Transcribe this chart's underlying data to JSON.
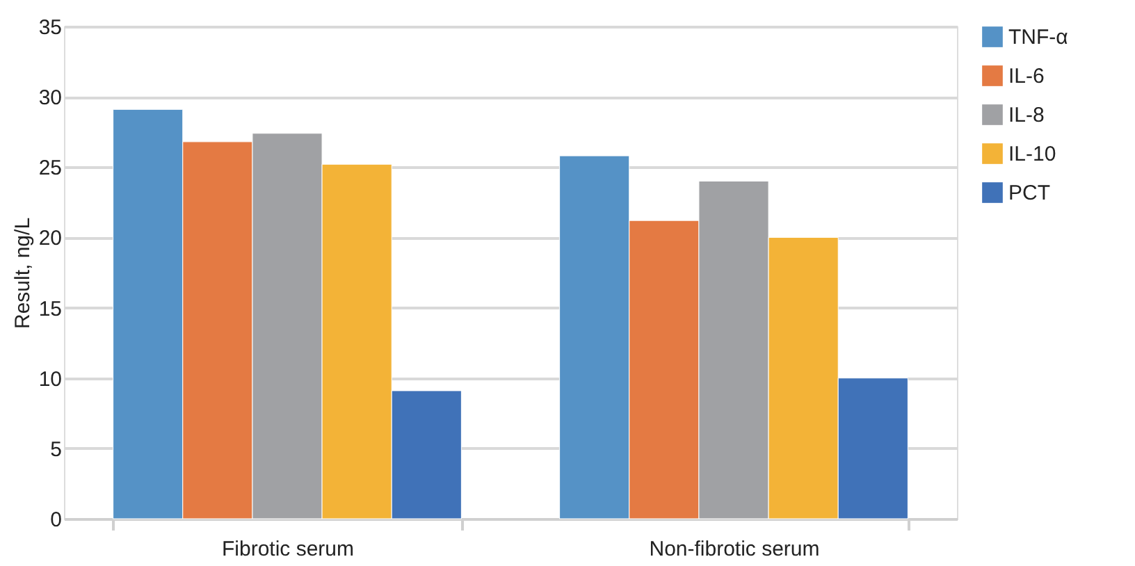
{
  "chart_data": {
    "type": "bar",
    "ylabel": "Result, ng/L",
    "categories": [
      "Fibrotic serum",
      "Non-fibrotic serum"
    ],
    "series": [
      {
        "name": "TNF-α",
        "color": "#5592c6",
        "values": [
          29.1,
          25.8
        ]
      },
      {
        "name": "IL-6",
        "color": "#e47a43",
        "values": [
          26.8,
          21.2
        ]
      },
      {
        "name": "IL-8",
        "color": "#a0a1a4",
        "values": [
          27.4,
          24.0
        ]
      },
      {
        "name": "IL-10",
        "color": "#f3b337",
        "values": [
          25.2,
          20.0
        ]
      },
      {
        "name": "PCT",
        "color": "#4072b8",
        "values": [
          9.1,
          10.0
        ]
      }
    ],
    "ylim": [
      0,
      35
    ],
    "yticks": [
      0,
      5,
      10,
      15,
      20,
      25,
      30,
      35
    ],
    "grid": "y",
    "legend": "right"
  }
}
